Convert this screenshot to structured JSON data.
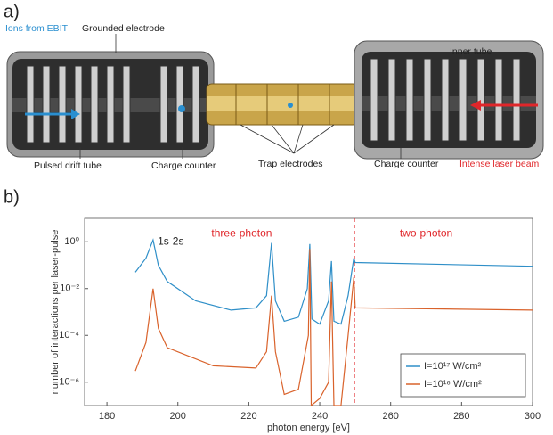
{
  "panel_a": {
    "label": "a)",
    "callouts": [
      {
        "text": "Ions from EBIT",
        "color": "#2a8fd0"
      },
      {
        "text": "Grounded electrode",
        "color": "#222222"
      },
      {
        "text": "Inner tube",
        "color": "#222222"
      },
      {
        "text": "Pulsed drift tube",
        "color": "#222222"
      },
      {
        "text": "Charge counter",
        "color": "#222222"
      },
      {
        "text": "Trap electrodes",
        "color": "#222222"
      },
      {
        "text": "Charge counter",
        "color": "#222222"
      },
      {
        "text": "Intense laser beam",
        "color": "#e0262a"
      }
    ]
  },
  "chart_data": {
    "type": "line",
    "panel_label": "b)",
    "x_label": "photon energy [eV]",
    "y_label": "number of interactions per laser-pulse",
    "xlim": [
      173.7,
      300
    ],
    "xticks": [
      180,
      200,
      220,
      240,
      260,
      280,
      300
    ],
    "ylim": [
      1e-07,
      10
    ],
    "log_y": true,
    "yticks": [
      {
        "value": 1,
        "label": "10⁰"
      },
      {
        "value": 0.01,
        "label": "10⁻²"
      },
      {
        "value": 0.0001,
        "label": "10⁻⁴"
      },
      {
        "value": 1e-06,
        "label": "10⁻⁶"
      }
    ],
    "grid": false,
    "legend": "lower right",
    "annotations": [
      {
        "text": "three-photon",
        "x": 218,
        "y": 2.2,
        "color": "#e0262a"
      },
      {
        "text": "two-photon",
        "x": 270,
        "y": 2.2,
        "color": "#e0262a"
      },
      {
        "text": "1s-2s",
        "x": 198,
        "y": 1,
        "color": "#222222"
      }
    ],
    "reference_line_x": 249.8,
    "reference_line_color": "#e0262a",
    "series": [
      {
        "name": "I=10¹⁷ W/cm²",
        "color": "#2f8fc8",
        "x": [
          188,
          191,
          193,
          194.5,
          197,
          205,
          215,
          222,
          225,
          226.4,
          227.5,
          230,
          234,
          236.5,
          237.2,
          237.8,
          240,
          242.5,
          243.3,
          244,
          246,
          248,
          249.6,
          250,
          300
        ],
        "values": [
          0.05,
          0.2,
          1.2,
          0.1,
          0.02,
          0.003,
          0.0012,
          0.0015,
          0.005,
          0.9,
          0.003,
          0.0004,
          0.0006,
          0.01,
          0.8,
          0.0005,
          0.0003,
          0.003,
          0.15,
          0.0004,
          0.0003,
          0.005,
          0.2,
          0.13,
          0.09
        ]
      },
      {
        "name": "I=10¹⁶ W/cm²",
        "color": "#d9622b",
        "x": [
          188,
          191,
          193,
          194.5,
          197,
          210,
          222,
          225,
          226.4,
          227.5,
          230,
          234,
          236.8,
          237.2,
          237.6,
          240,
          242.5,
          243.3,
          244,
          246,
          248,
          249.6,
          250,
          300
        ],
        "values": [
          3e-06,
          5e-05,
          0.01,
          0.0002,
          3e-05,
          5e-06,
          4e-06,
          2e-05,
          0.005,
          2e-05,
          3e-07,
          5e-07,
          0.0001,
          0.5,
          1e-07,
          2e-07,
          1e-06,
          0.02,
          1e-07,
          1e-07,
          0.0001,
          0.03,
          0.0015,
          0.0012
        ]
      }
    ]
  }
}
